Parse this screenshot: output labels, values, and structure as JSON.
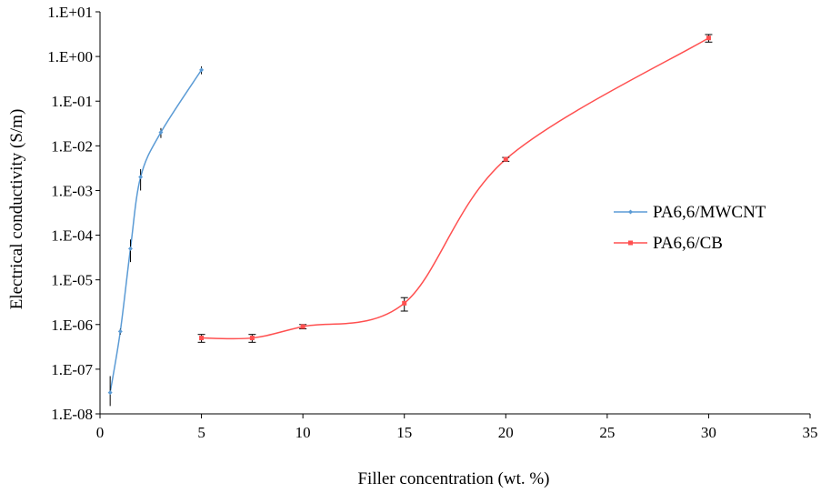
{
  "chart_data": {
    "type": "scatter",
    "title": "",
    "xlabel": "Filler concentration (wt. %)",
    "ylabel": "Electrical conductivity (S/m)",
    "xlim": [
      0,
      35
    ],
    "ylim": [
      1e-08,
      10
    ],
    "yscale": "log",
    "grid": false,
    "legend_position": "right",
    "x_ticks": [
      "0",
      "5",
      "10",
      "15",
      "20",
      "25",
      "30",
      "35"
    ],
    "y_ticks": [
      "1.E-08",
      "1.E-07",
      "1.E-06",
      "1.E-05",
      "1.E-04",
      "1.E-03",
      "1.E-02",
      "1.E-01",
      "1.E+00",
      "1.E+01"
    ],
    "series": [
      {
        "name": "PA6,6/MWCNT",
        "color": "#5B9BD5",
        "marker": "diamond",
        "x": [
          0.5,
          1,
          1.5,
          2,
          3,
          5
        ],
        "y": [
          3e-08,
          7e-07,
          5e-05,
          0.002,
          0.02,
          0.5
        ],
        "err_low": [
          1.5e-08,
          1e-07,
          2.5e-05,
          0.001,
          0.005,
          0.1
        ],
        "err_high": [
          4e-08,
          1e-07,
          3e-05,
          0.001,
          0.005,
          0.1
        ]
      },
      {
        "name": "PA6,6/CB",
        "color": "#FF5050",
        "marker": "square",
        "x": [
          5,
          7.5,
          10,
          15,
          20,
          30
        ],
        "y": [
          5e-07,
          5e-07,
          9e-07,
          3e-06,
          0.005,
          2.6
        ],
        "err_low": [
          1e-07,
          1e-07,
          1e-07,
          1e-06,
          0.0005,
          0.5
        ],
        "err_high": [
          1e-07,
          1e-07,
          1e-07,
          1e-06,
          0.0005,
          0.5
        ]
      }
    ]
  }
}
